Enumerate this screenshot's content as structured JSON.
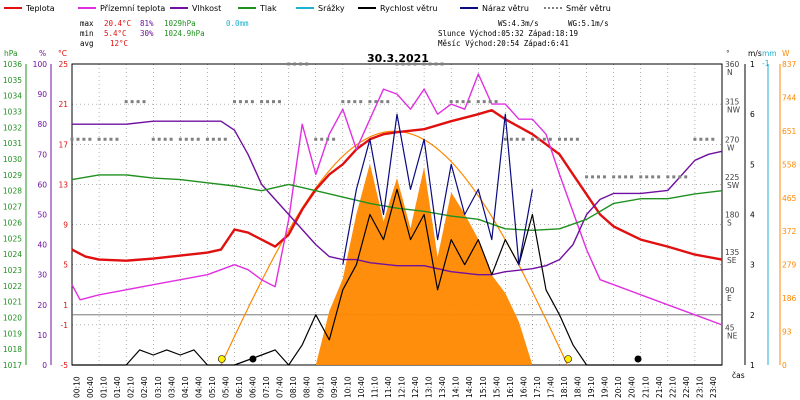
{
  "chart_data": {
    "type": "line",
    "title": "30.3.2021",
    "legend": [
      {
        "label": "Teplota",
        "color": "#e01010"
      },
      {
        "label": "Přízemní teplota",
        "color": "#e030e0"
      },
      {
        "label": "Vlhkost",
        "color": "#7010a0"
      },
      {
        "label": "Tlak",
        "color": "#209020"
      },
      {
        "label": "Srážky",
        "color": "#20b0d0"
      },
      {
        "label": "Rychlost větru",
        "color": "#000000"
      },
      {
        "label": "Náraz větru",
        "color": "#0a0a80"
      },
      {
        "label": "Směr větru",
        "color": "#808080"
      }
    ],
    "stats": {
      "max_label": "max",
      "max_temp": "20.4°C",
      "max_hum": "81%",
      "max_press": "1029hPa",
      "max_rain": "0.0mm",
      "min_label": "min",
      "min_temp": "5.4°C",
      "min_hum": "30%",
      "min_press": "1024.9hPa",
      "avg_label": "avg",
      "avg_temp": "12°C",
      "ws": "WS:4.3m/s",
      "wg": "WG:5.1m/s",
      "sun": "Slunce Východ:05:32  Západ:18:19",
      "moon": "Měsíc  Východ:20:54  Západ:6:41"
    },
    "axes": {
      "hpa_label": "hPa",
      "pct_label": "%",
      "degc_label": "°C",
      "dir_label": "°",
      "ms_label": "m/s",
      "mm_label": "mm",
      "w_label": "W",
      "hpa_ticks": [
        "1036",
        "1035",
        "1034",
        "1033",
        "1032",
        "1031",
        "1030",
        "1029",
        "1028",
        "1027",
        "1026",
        "1025",
        "1024",
        "1023",
        "1022",
        "1021",
        "1020",
        "1019",
        "1018",
        "1017"
      ],
      "pct_ticks": [
        "100",
        "90",
        "80",
        "70",
        "60",
        "50",
        "40",
        "30",
        "20",
        "10",
        "0"
      ],
      "degc_ticks": [
        "25",
        "21",
        "17",
        "13",
        "9",
        "5",
        "1",
        "-1",
        "-5"
      ],
      "dir_ticks": [
        "360",
        "315",
        "270",
        "225",
        "180",
        "135",
        "90",
        "45"
      ],
      "dir_names": [
        "N",
        "NW",
        "W",
        "SW",
        "S",
        "SE",
        "E",
        "NE"
      ],
      "ms_ticks": [
        "1",
        "6",
        "5",
        "4",
        "3",
        "2",
        "1"
      ],
      "ms_top": "-1",
      "w_ticks": [
        "837",
        "744",
        "651",
        "558",
        "465",
        "372",
        "279",
        "186",
        "93",
        "0"
      ],
      "time_label": "čas",
      "x_ticks": [
        "00:10",
        "00:40",
        "01:10",
        "01:40",
        "02:10",
        "02:40",
        "03:10",
        "03:40",
        "04:10",
        "04:40",
        "05:10",
        "05:40",
        "06:10",
        "06:40",
        "07:10",
        "07:40",
        "08:10",
        "08:40",
        "09:10",
        "09:40",
        "10:10",
        "10:40",
        "11:10",
        "11:40",
        "12:10",
        "12:40",
        "13:10",
        "13:40",
        "14:10",
        "14:40",
        "15:10",
        "15:40",
        "16:10",
        "16:40",
        "17:10",
        "17:40",
        "18:10",
        "18:40",
        "19:10",
        "19:40",
        "20:10",
        "20:40",
        "21:10",
        "21:40",
        "22:10",
        "22:40",
        "23:10",
        "23:40"
      ]
    },
    "x_hours": [
      0,
      1,
      2,
      3,
      4,
      5,
      6,
      7,
      8,
      9,
      10,
      11,
      12,
      13,
      14,
      15,
      16,
      17,
      18,
      19,
      20,
      21,
      22,
      23,
      24
    ],
    "series": [
      {
        "name": "Teplota",
        "unit": "°C",
        "color": "#e01010",
        "x": [
          0,
          0.5,
          1,
          2,
          3,
          4,
          5,
          5.5,
          6,
          6.5,
          7,
          7.5,
          8,
          8.5,
          9,
          9.5,
          10,
          10.5,
          11,
          11.5,
          12,
          13,
          14,
          15,
          15.5,
          16,
          17,
          18,
          18.5,
          19,
          19.5,
          20,
          21,
          22,
          23,
          24
        ],
        "values": [
          6.5,
          5.8,
          5.5,
          5.4,
          5.6,
          5.9,
          6.2,
          6.5,
          8.5,
          8.2,
          7.5,
          6.8,
          8.0,
          10.5,
          12.5,
          14.0,
          15.0,
          16.5,
          17.5,
          18.0,
          18.2,
          18.5,
          19.3,
          20.0,
          20.4,
          19.5,
          18.0,
          16.0,
          14.0,
          12.0,
          10.0,
          8.8,
          7.5,
          6.8,
          6.0,
          5.5
        ]
      },
      {
        "name": "Přízemní teplota",
        "unit": "°C",
        "color": "#e030e0",
        "x": [
          0,
          0.3,
          1,
          2,
          3,
          4,
          5,
          5.5,
          6,
          6.5,
          7,
          7.5,
          8,
          8.5,
          9,
          9.5,
          10,
          10.5,
          11,
          11.5,
          12,
          12.5,
          13,
          13.5,
          14,
          14.5,
          15,
          15.5,
          16,
          16.5,
          17,
          17.5,
          18,
          19,
          19.5,
          20,
          21,
          22,
          23,
          24
        ],
        "values": [
          3,
          1.5,
          2,
          2.5,
          3,
          3.5,
          4,
          4.5,
          5,
          4.5,
          3.5,
          2.8,
          9.5,
          19,
          14,
          18,
          20.5,
          16.5,
          19.5,
          22.5,
          22,
          20.5,
          22.5,
          20,
          21,
          20.5,
          24,
          21,
          21,
          19.5,
          19.5,
          18,
          14,
          6.5,
          3.5,
          3,
          2,
          1,
          0,
          -1
        ]
      },
      {
        "name": "Vlhkost",
        "unit": "%",
        "color": "#7010a0",
        "x": [
          0,
          1,
          2,
          3,
          4,
          5,
          5.5,
          6,
          6.5,
          7,
          7.5,
          8,
          8.5,
          9,
          9.5,
          10,
          10.5,
          11,
          12,
          13,
          14,
          15,
          15.5,
          16,
          17,
          17.5,
          18,
          18.5,
          19,
          19.5,
          20,
          21,
          22,
          22.5,
          23,
          23.5,
          24
        ],
        "values": [
          80,
          80,
          80,
          81,
          81,
          81,
          81,
          78,
          70,
          60,
          55,
          50,
          45,
          40,
          36,
          35,
          35,
          34,
          33,
          33,
          31,
          30,
          30,
          31,
          32,
          33,
          35,
          40,
          50,
          55,
          57,
          57,
          58,
          63,
          68,
          70,
          71
        ]
      },
      {
        "name": "Tlak",
        "unit": "hPa",
        "color": "#209020",
        "x": [
          0,
          1,
          2,
          3,
          4,
          5,
          6,
          7,
          8,
          9,
          10,
          11,
          12,
          13,
          14,
          15,
          16,
          17,
          18,
          19,
          20,
          21,
          22,
          23,
          24
        ],
        "values": [
          1028.7,
          1029.0,
          1029.0,
          1028.8,
          1028.7,
          1028.5,
          1028.3,
          1028.0,
          1028.4,
          1028.0,
          1027.6,
          1027.2,
          1026.9,
          1026.7,
          1026.4,
          1026.2,
          1025.6,
          1025.5,
          1025.6,
          1026.2,
          1027.2,
          1027.5,
          1027.5,
          1027.8,
          1028.0
        ]
      },
      {
        "name": "Rychlost větru",
        "unit": "m/s",
        "color": "#000000",
        "x": [
          0,
          1,
          2,
          2.5,
          3,
          3.5,
          4,
          4.5,
          5,
          6,
          7,
          7.5,
          8,
          8.5,
          9,
          9.5,
          10,
          10.5,
          11,
          11.5,
          12,
          12.5,
          13,
          13.5,
          14,
          14.5,
          15,
          15.5,
          16,
          16.5,
          17,
          17.5,
          18,
          18.5,
          19,
          20,
          21,
          22,
          23,
          24
        ],
        "values": [
          0,
          0,
          0,
          0.3,
          0.2,
          0.3,
          0.2,
          0.3,
          0,
          0,
          0.2,
          0.3,
          0,
          0.4,
          1.0,
          0.5,
          1.5,
          2.0,
          3.0,
          2.5,
          3.5,
          2.5,
          3.0,
          1.5,
          2.5,
          2.0,
          2.5,
          1.8,
          2.5,
          2.0,
          3.0,
          1.5,
          1.0,
          0.4,
          0,
          0,
          0,
          0,
          0,
          0
        ]
      },
      {
        "name": "Náraz větru",
        "unit": "m/s",
        "color": "#0a0a80",
        "x": [
          10,
          10.5,
          11,
          11.5,
          12,
          12.5,
          13,
          13.5,
          14,
          14.5,
          15,
          15.5,
          16,
          16.5,
          17
        ],
        "values": [
          2.0,
          3.5,
          4.5,
          3.0,
          5.0,
          3.5,
          4.5,
          2.5,
          4.0,
          3.0,
          3.5,
          2.5,
          5.0,
          2.0,
          3.5
        ]
      },
      {
        "name": "Směr větru",
        "unit": "°",
        "color": "#808080",
        "x": [
          0,
          1,
          2,
          3,
          4,
          5,
          6,
          7,
          8,
          9,
          10,
          11,
          12,
          13,
          14,
          15,
          16,
          17,
          18,
          19,
          20,
          21,
          22,
          23
        ],
        "values": [
          270,
          270,
          315,
          270,
          270,
          270,
          315,
          315,
          360,
          270,
          315,
          315,
          360,
          360,
          315,
          315,
          270,
          270,
          270,
          225,
          225,
          225,
          225,
          270
        ]
      }
    ],
    "radiation": {
      "name": "Záření",
      "unit": "W",
      "color": "#ff8800",
      "x": [
        9,
        9.5,
        10,
        10.5,
        11,
        11.5,
        12,
        12.5,
        13,
        13.5,
        14,
        14.5,
        15,
        15.5,
        16,
        16.5,
        17
      ],
      "values": [
        0,
        150,
        240,
        420,
        560,
        400,
        520,
        380,
        550,
        300,
        480,
        420,
        350,
        250,
        200,
        120,
        0
      ]
    },
    "solar_curve": {
      "color": "#ff8800",
      "x_start": 5.5,
      "x_peak": 12,
      "x_end": 18.3,
      "peak": 650
    },
    "ranges": {
      "x": [
        0,
        24
      ],
      "degc": [
        -5,
        25
      ],
      "hpa": [
        1017,
        1036
      ],
      "pct": [
        0,
        100
      ],
      "dir": [
        0,
        360
      ],
      "ms": [
        0,
        6
      ],
      "w": [
        0,
        837
      ]
    }
  }
}
